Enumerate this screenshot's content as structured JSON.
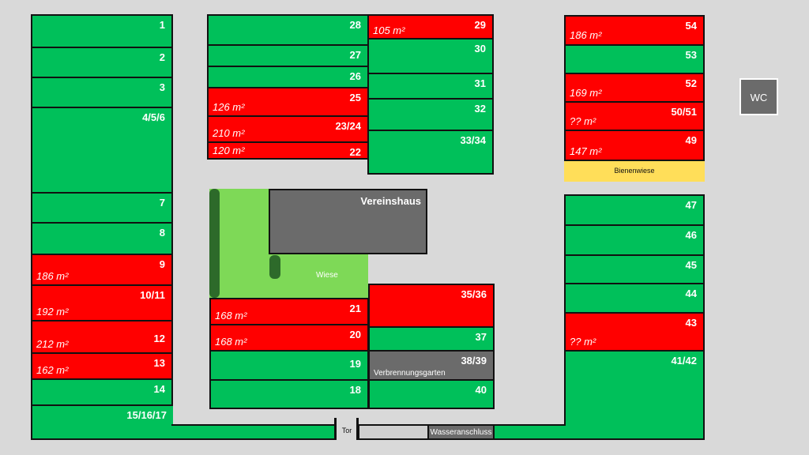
{
  "plots": {
    "p1": {
      "num": "1"
    },
    "p2": {
      "num": "2"
    },
    "p3": {
      "num": "3"
    },
    "p456": {
      "num": "4/5/6"
    },
    "p7": {
      "num": "7"
    },
    "p8": {
      "num": "8"
    },
    "p9": {
      "num": "9",
      "area": "186 m²"
    },
    "p1011": {
      "num": "10/11",
      "area": "192 m²"
    },
    "p12": {
      "num": "12",
      "area": "212 m²"
    },
    "p13": {
      "num": "13",
      "area": "162 m²"
    },
    "p14": {
      "num": "14"
    },
    "p151617": {
      "num": "15/16/17"
    },
    "p28": {
      "num": "28"
    },
    "p27": {
      "num": "27"
    },
    "p26": {
      "num": "26"
    },
    "p25": {
      "num": "25",
      "area": "126 m²"
    },
    "p2324": {
      "num": "23/24",
      "area": "210 m²"
    },
    "p22": {
      "num": "22",
      "area": "120 m²"
    },
    "p29": {
      "num": "29",
      "area": "105 m²"
    },
    "p30": {
      "num": "30"
    },
    "p31": {
      "num": "31"
    },
    "p32": {
      "num": "32"
    },
    "p3334": {
      "num": "33/34"
    },
    "p21": {
      "num": "21",
      "area": "168 m²"
    },
    "p20": {
      "num": "20",
      "area": "168 m²"
    },
    "p19": {
      "num": "19"
    },
    "p18": {
      "num": "18"
    },
    "p3536": {
      "num": "35/36"
    },
    "p37": {
      "num": "37"
    },
    "p3839": {
      "num": "38/39",
      "sub": "Verbrennungsgarten"
    },
    "p40": {
      "num": "40"
    },
    "p54": {
      "num": "54",
      "area": "186 m²"
    },
    "p53": {
      "num": "53"
    },
    "p52": {
      "num": "52",
      "area": "169 m²"
    },
    "p5051": {
      "num": "50/51",
      "area": "?? m²"
    },
    "p49": {
      "num": "49",
      "area": "147 m²"
    },
    "p47": {
      "num": "47"
    },
    "p46": {
      "num": "46"
    },
    "p45": {
      "num": "45"
    },
    "p44": {
      "num": "44"
    },
    "p43": {
      "num": "43",
      "area": "?? m²"
    },
    "p4142": {
      "num": "41/42"
    }
  },
  "labels": {
    "vereinshaus": "Vereinshaus",
    "wiese": "Wiese",
    "bienenwiese": "Bienenwiese",
    "wc": "WC",
    "tor": "Tor",
    "wasseranschluss": "Wasseranschluss"
  },
  "colors": {
    "free": "#00c05a",
    "taken": "#ff0000",
    "building": "#6b6b6b",
    "meadow": "#7ed957",
    "hedge": "#2d6a2a",
    "bee_meadow": "#ffde59"
  }
}
